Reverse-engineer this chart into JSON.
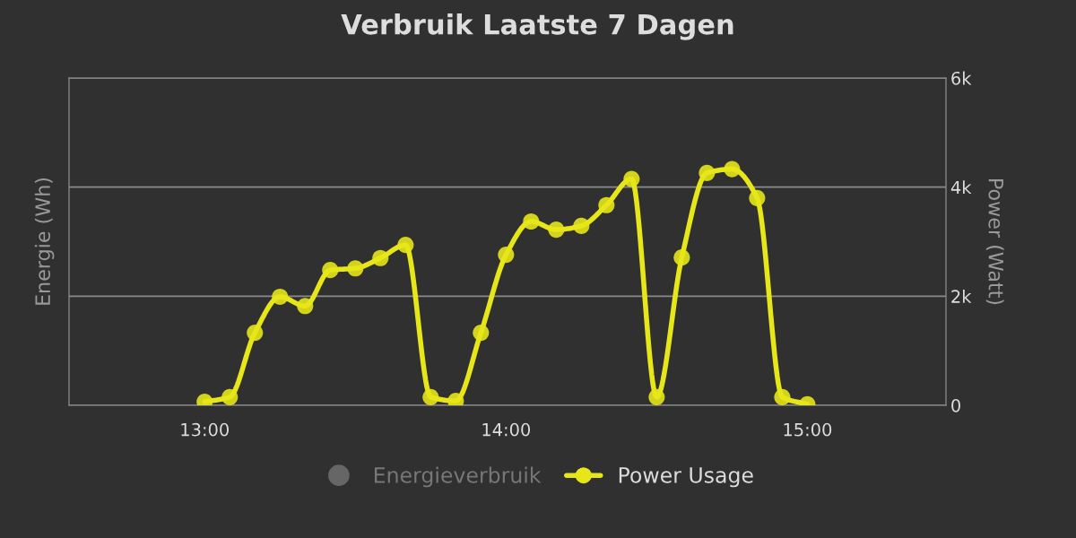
{
  "chart_data": {
    "type": "line",
    "title": "Verbruik Laatste 7 Dagen",
    "ylabel": "Energie (Wh)",
    "y2label": "Power (Watt)",
    "x": [
      13.0,
      13.0833,
      13.1667,
      13.25,
      13.3333,
      13.4167,
      13.5,
      13.5833,
      13.6667,
      13.75,
      13.8333,
      13.9167,
      14.0,
      14.0833,
      14.1667,
      14.25,
      14.3333,
      14.4167,
      14.5,
      14.5833,
      14.6667,
      14.75,
      14.8333,
      14.9167,
      15.0
    ],
    "xlim": [
      12.55,
      15.46
    ],
    "xticks": [
      {
        "value": 13,
        "label": "13:00"
      },
      {
        "value": 14,
        "label": "14:00"
      },
      {
        "value": 15,
        "label": "15:00"
      }
    ],
    "y2lim": [
      0,
      6000
    ],
    "y2ticks": [
      {
        "value": 0,
        "label": "0"
      },
      {
        "value": 2000,
        "label": "2k"
      },
      {
        "value": 4000,
        "label": "4k"
      },
      {
        "value": 6000,
        "label": "6k"
      }
    ],
    "series": [
      {
        "name": "Energieverbruik",
        "color": "#666666",
        "values": [
          null,
          null,
          null,
          null,
          null,
          null,
          null,
          null,
          null,
          null,
          null,
          null,
          null,
          null,
          null,
          null,
          null,
          null,
          null,
          null,
          null,
          null,
          null,
          null,
          null
        ]
      },
      {
        "name": "Power Usage",
        "color": "#e6e619",
        "axis": "y2",
        "values": [
          65,
          150,
          1330,
          1990,
          1820,
          2480,
          2510,
          2700,
          2940,
          150,
          80,
          1330,
          2760,
          3370,
          3220,
          3290,
          3670,
          4150,
          150,
          2710,
          4260,
          4330,
          3800,
          150,
          20
        ]
      }
    ],
    "grid": "y",
    "legend": "bottom",
    "marker": "circle",
    "line_style": "solid"
  }
}
